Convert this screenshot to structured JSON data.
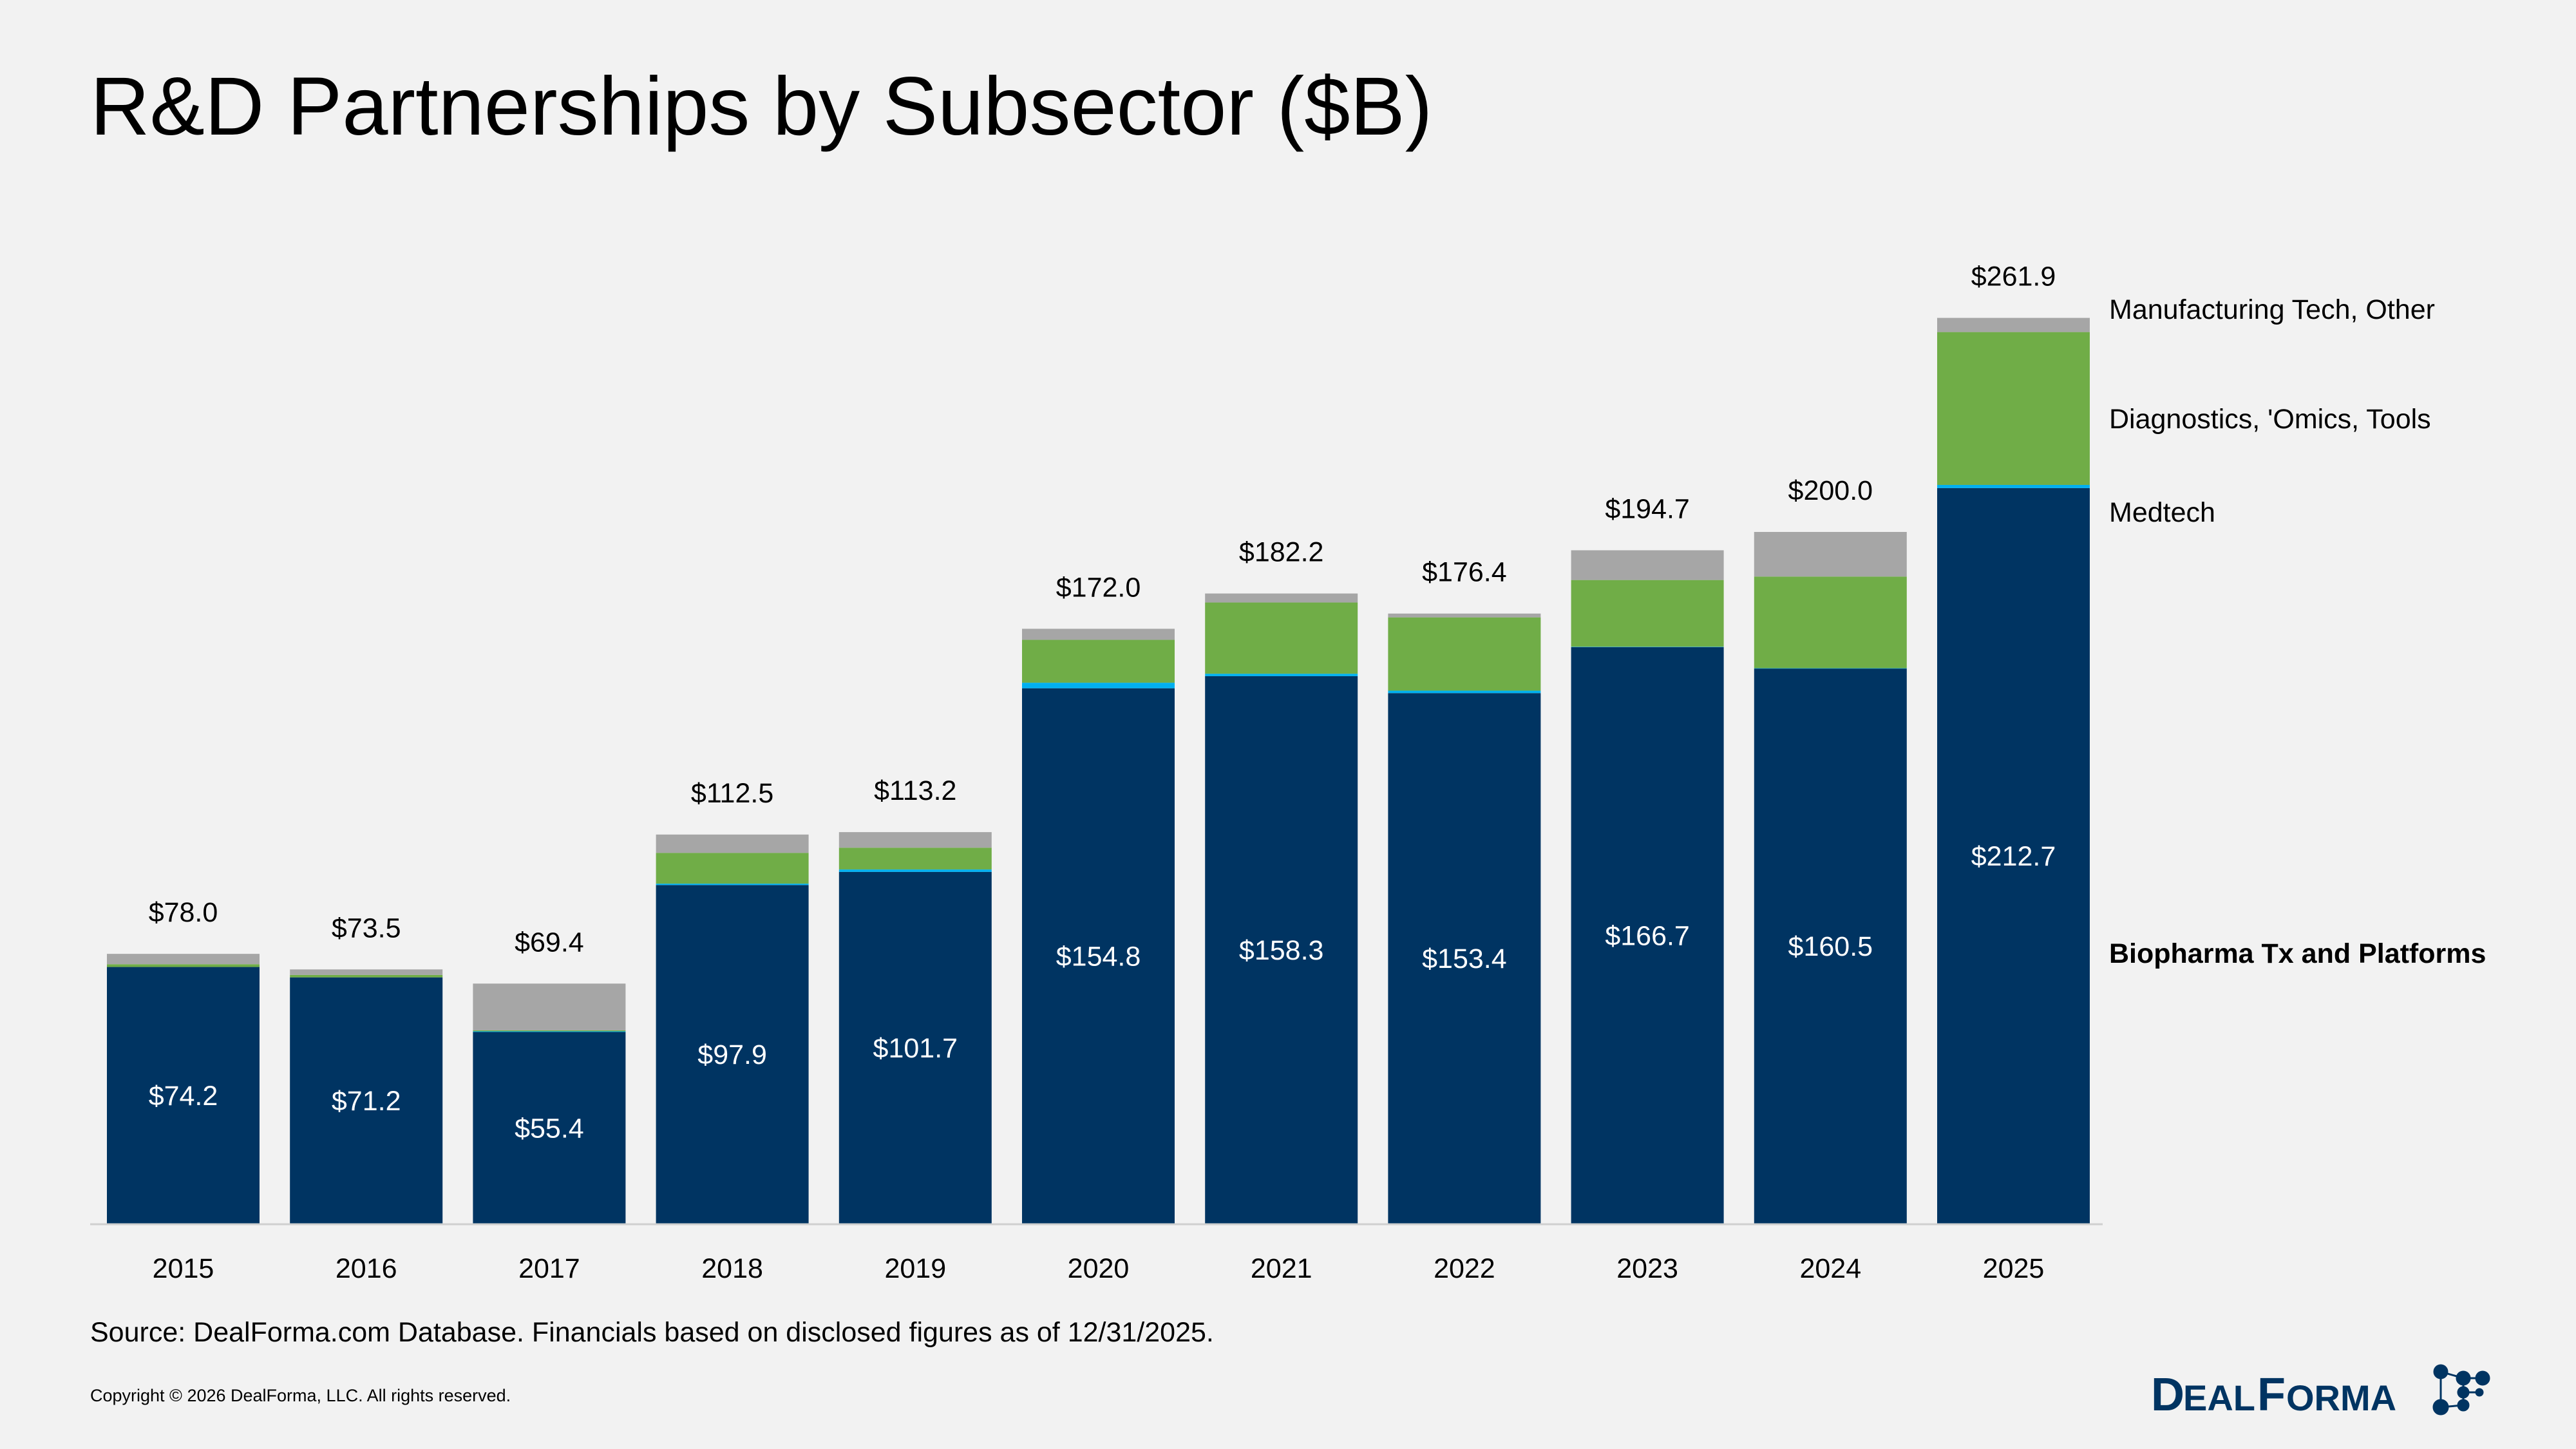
{
  "title": "R&D Partnerships by Subsector ($B)",
  "source": "Source: DealForma.com Database. Financials based on disclosed figures as of 12/31/2025.",
  "copyright": "Copyright © 2026 DealForma, LLC. All rights reserved.",
  "logo": {
    "text": "DealForma",
    "color": "#003462"
  },
  "chart_data": {
    "type": "bar",
    "stacked": true,
    "categories": [
      "2015",
      "2016",
      "2017",
      "2018",
      "2019",
      "2020",
      "2021",
      "2022",
      "2023",
      "2024",
      "2025"
    ],
    "series": [
      {
        "name": "Biopharma Tx and Platforms",
        "color": "#003462",
        "values": [
          74.2,
          71.2,
          55.4,
          97.9,
          101.7,
          154.8,
          158.3,
          153.4,
          166.7,
          160.5,
          212.7
        ],
        "labels": [
          "$74.2",
          "$71.2",
          "$55.4",
          "$97.9",
          "$101.7",
          "$154.8",
          "$158.3",
          "$153.4",
          "$166.7",
          "$160.5",
          "$212.7"
        ]
      },
      {
        "name": "Medtech",
        "color": "#00b0f0",
        "values": [
          0.0,
          0.0,
          0.2,
          0.4,
          0.7,
          1.6,
          0.7,
          0.7,
          0.1,
          0.1,
          0.9
        ]
      },
      {
        "name": "Diagnostics, 'Omics, Tools",
        "color": "#70ad47",
        "values": [
          0.8,
          0.7,
          0.3,
          8.9,
          6.3,
          12.4,
          20.6,
          21.2,
          19.3,
          26.5,
          44.2
        ]
      },
      {
        "name": "Manufacturing Tech, Other",
        "color": "#a6a6a6",
        "values": [
          3.0,
          1.6,
          13.5,
          5.3,
          4.5,
          3.2,
          2.6,
          1.1,
          8.6,
          12.9,
          4.1
        ]
      }
    ],
    "totals": [
      "$78.0",
      "$73.5",
      "$69.4",
      "$112.5",
      "$113.2",
      "$172.0",
      "$182.2",
      "$176.4",
      "$194.7",
      "$200.0",
      "$261.9"
    ],
    "ylim": [
      0,
      265
    ],
    "grid": false,
    "legend": "right, aligned to 2025 bar segments"
  }
}
